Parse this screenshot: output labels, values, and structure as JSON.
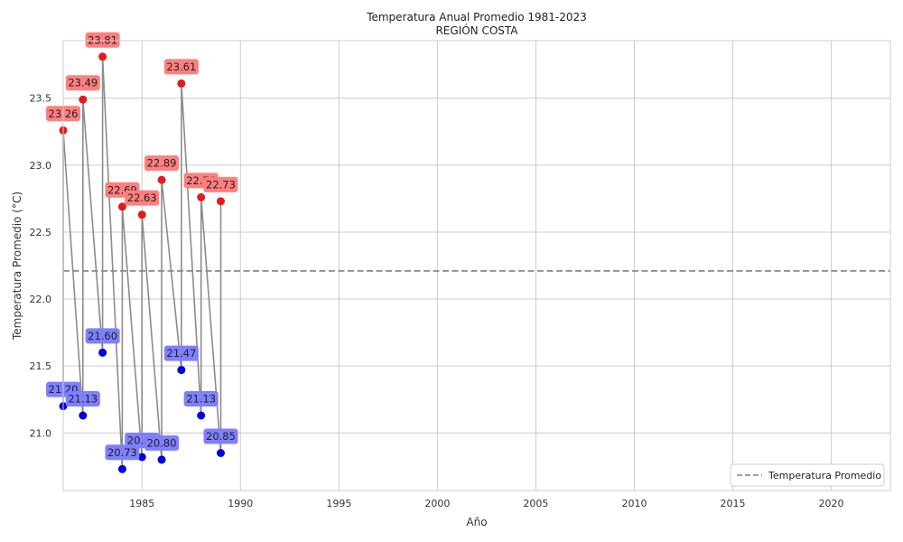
{
  "chart_data": {
    "type": "line",
    "title": "Temperatura Anual Promedio 1981-2023",
    "subtitle": "REGIÓN COSTA",
    "xlabel": "Año",
    "ylabel": "Temperatura Promedio (°C)",
    "xlim": [
      1981,
      2023
    ],
    "ylim": [
      20.57,
      23.93
    ],
    "x_ticks": [
      1985,
      1990,
      1995,
      2000,
      2005,
      2010,
      2015,
      2020
    ],
    "y_ticks": [
      21.0,
      21.5,
      22.0,
      22.5,
      23.0,
      23.5
    ],
    "grid": true,
    "legend_position": "bottom-right",
    "colors": {
      "high": "#e41a1c",
      "low": "#0000dd",
      "high_label_bg": "#ff7f7f",
      "low_label_bg": "#7f7fff",
      "line": "#8c8c8c",
      "mean_line": "#808080"
    },
    "series": [
      {
        "name": "",
        "points": [
          {
            "x": 1981,
            "y": 21.2,
            "label": "21.20",
            "kind": "low"
          },
          {
            "x": 1981,
            "y": 23.26,
            "label": "23.26",
            "kind": "high"
          },
          {
            "x": 1982,
            "y": 21.13,
            "label": "21.13",
            "kind": "low"
          },
          {
            "x": 1982,
            "y": 23.49,
            "label": "23.49",
            "kind": "high"
          },
          {
            "x": 1983,
            "y": 21.6,
            "label": "21.60",
            "kind": "low"
          },
          {
            "x": 1983,
            "y": 23.81,
            "label": "23.81",
            "kind": "high"
          },
          {
            "x": 1984,
            "y": 20.73,
            "label": "20.73",
            "kind": "low"
          },
          {
            "x": 1984,
            "y": 22.69,
            "label": "22.69",
            "kind": "high"
          },
          {
            "x": 1985,
            "y": 20.82,
            "label": "20.82",
            "kind": "low"
          },
          {
            "x": 1985,
            "y": 22.63,
            "label": "22.63",
            "kind": "high"
          },
          {
            "x": 1986,
            "y": 20.8,
            "label": "20.80",
            "kind": "low"
          },
          {
            "x": 1986,
            "y": 22.89,
            "label": "22.89",
            "kind": "high"
          },
          {
            "x": 1987,
            "y": 21.47,
            "label": "21.47",
            "kind": "low"
          },
          {
            "x": 1987,
            "y": 23.61,
            "label": "23.61",
            "kind": "high"
          },
          {
            "x": 1988,
            "y": 21.13,
            "label": "21.13",
            "kind": "low"
          },
          {
            "x": 1988,
            "y": 22.76,
            "label": "22.76",
            "kind": "high"
          },
          {
            "x": 1989,
            "y": 20.85,
            "label": "20.85",
            "kind": "low"
          },
          {
            "x": 1989,
            "y": 22.73,
            "label": "22.73",
            "kind": "high"
          }
        ]
      }
    ],
    "mean_line": {
      "name": "Temperatura Promedio",
      "value": 22.21
    }
  }
}
